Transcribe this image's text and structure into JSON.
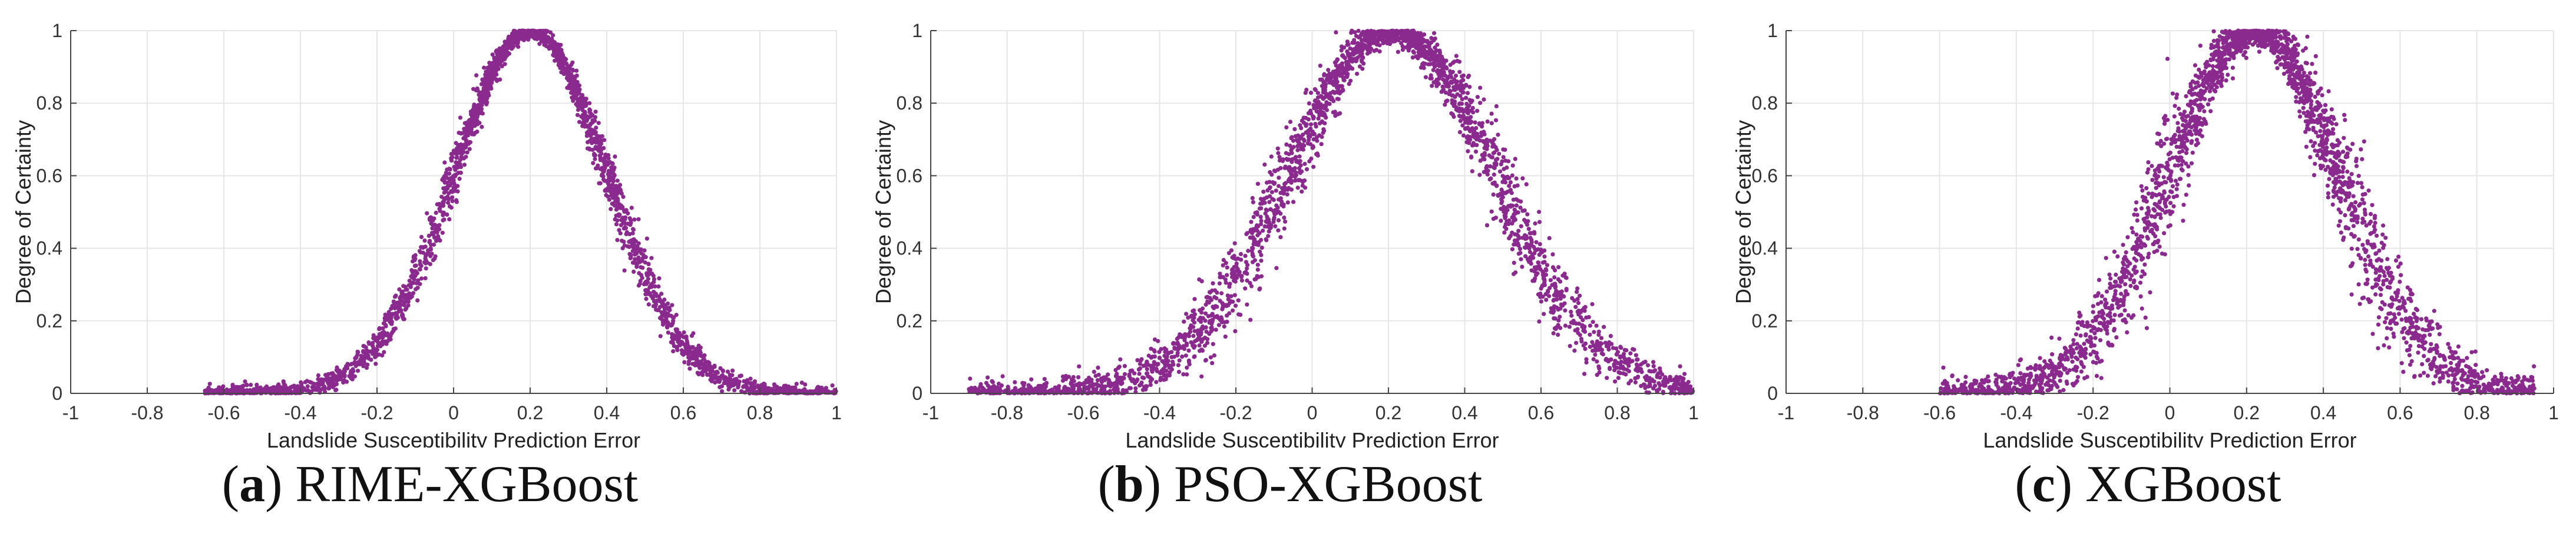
{
  "chart_data": [
    {
      "type": "scatter",
      "panel_letter": "a",
      "caption_name": "RIME-XGBoost",
      "xlabel": "Landslide Susceptibility Prediction Error",
      "ylabel": "Degree of Certainty",
      "xlim": [
        -1,
        1
      ],
      "ylim": [
        0,
        1
      ],
      "xticks": [
        -1,
        -0.8,
        -0.6,
        -0.4,
        -0.2,
        0,
        0.2,
        0.4,
        0.6,
        0.8,
        1
      ],
      "yticks": [
        0,
        0.2,
        0.4,
        0.6,
        0.8,
        1
      ],
      "grid": true,
      "marker_color": "#8B2A8E",
      "distribution": {
        "peak_x": 0.2,
        "sigma": 0.2,
        "spread": 0.025,
        "n_points": 2600,
        "x_range": [
          -0.65,
          1.0
        ]
      }
    },
    {
      "type": "scatter",
      "panel_letter": "b",
      "caption_name": "PSO-XGBoost",
      "xlabel": "Landslide Susceptibility Prediction Error",
      "ylabel": "Degree of Certainty",
      "xlim": [
        -1,
        1
      ],
      "ylim": [
        0,
        1
      ],
      "xticks": [
        -1,
        -0.8,
        -0.6,
        -0.4,
        -0.2,
        0,
        0.2,
        0.4,
        0.6,
        0.8,
        1
      ],
      "yticks": [
        0,
        0.2,
        0.4,
        0.6,
        0.8,
        1
      ],
      "grid": true,
      "marker_color": "#8B2A8E",
      "distribution": {
        "peak_x": 0.21,
        "sigma": 0.27,
        "spread": 0.045,
        "n_points": 2600,
        "x_range": [
          -0.9,
          1.0
        ]
      }
    },
    {
      "type": "scatter",
      "panel_letter": "c",
      "caption_name": "XGBoost",
      "xlabel": "Landslide Susceptibility Prediction Error",
      "ylabel": "Degree of Certainty",
      "xlim": [
        -1,
        1
      ],
      "ylim": [
        0,
        1
      ],
      "xticks": [
        -1,
        -0.8,
        -0.6,
        -0.4,
        -0.2,
        0,
        0.2,
        0.4,
        0.6,
        0.8,
        1
      ],
      "yticks": [
        0,
        0.2,
        0.4,
        0.6,
        0.8,
        1
      ],
      "grid": true,
      "marker_color": "#8B2A8E",
      "distribution": {
        "peak_x": 0.22,
        "sigma": 0.22,
        "spread": 0.055,
        "n_points": 2600,
        "x_range": [
          -0.6,
          0.95
        ]
      }
    }
  ]
}
